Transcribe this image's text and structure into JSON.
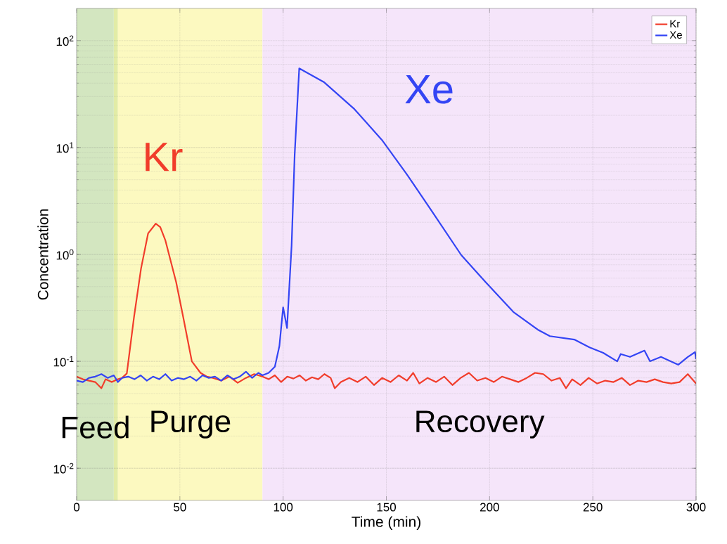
{
  "chart_data": {
    "type": "line",
    "xlabel": "Time (min)",
    "ylabel": "Concentration",
    "log": "y",
    "grid": true,
    "legend": "top right",
    "marker": "none",
    "line_style": "solid",
    "xlim": [
      0,
      300
    ],
    "xticks": [
      0,
      50,
      100,
      150,
      200,
      250,
      300
    ],
    "ylim": [
      0.005,
      200
    ],
    "yticks": [
      {
        "value": 0.01,
        "label": "10$^{-2}$"
      },
      {
        "value": 0.1,
        "label": "10$^{-1}$"
      },
      {
        "value": 1,
        "label": "10$^{0}$"
      },
      {
        "value": 10,
        "label": "10$^{1}$"
      },
      {
        "value": 100,
        "label": "10$^{2}$"
      }
    ],
    "bands": [
      {
        "axis": "x",
        "from": 0,
        "to": 18,
        "label": "Feed",
        "color": "#d3e6c0"
      },
      {
        "axis": "x",
        "from": 18,
        "to": 20,
        "label": null,
        "color": "#e2eca6"
      },
      {
        "axis": "x",
        "from": 20,
        "to": 90,
        "label": "Purge",
        "color": "#fcf9c0"
      },
      {
        "axis": "x",
        "from": 90,
        "to": 300,
        "label": "Recovery",
        "color": "#f5e5fa"
      }
    ],
    "annotations": [
      "Kr",
      "Xe"
    ],
    "series": [
      {
        "name": "Kr",
        "color": "#f23c2a",
        "x": [
          0,
          3,
          6,
          9,
          12,
          14,
          17,
          20,
          22,
          24.3,
          27.8,
          31.2,
          34.6,
          38.3,
          40.5,
          43,
          48.2,
          51.6,
          55.8,
          60,
          63,
          66,
          70,
          74,
          78,
          82,
          86,
          90,
          93,
          96,
          99,
          102,
          105,
          108,
          111,
          114,
          117,
          120,
          123,
          125,
          128,
          132,
          136,
          140,
          144,
          148,
          152,
          156,
          160,
          163,
          166,
          170,
          174,
          178,
          182,
          186,
          190,
          194,
          198,
          202,
          206,
          210,
          214,
          218,
          222,
          226,
          230,
          234,
          237,
          240,
          244,
          248,
          252,
          256,
          260,
          264,
          268,
          272,
          276,
          280,
          284,
          288,
          292,
          296,
          300
        ],
        "values": [
          0.072,
          0.068,
          0.066,
          0.064,
          0.056,
          0.068,
          0.064,
          0.068,
          0.07,
          0.077,
          0.26,
          0.74,
          1.57,
          1.94,
          1.8,
          1.35,
          0.55,
          0.26,
          0.1,
          0.078,
          0.072,
          0.07,
          0.066,
          0.072,
          0.063,
          0.07,
          0.076,
          0.072,
          0.068,
          0.074,
          0.064,
          0.072,
          0.069,
          0.074,
          0.066,
          0.071,
          0.068,
          0.076,
          0.07,
          0.056,
          0.064,
          0.07,
          0.064,
          0.072,
          0.06,
          0.07,
          0.064,
          0.074,
          0.066,
          0.078,
          0.062,
          0.07,
          0.064,
          0.072,
          0.06,
          0.07,
          0.078,
          0.066,
          0.07,
          0.064,
          0.072,
          0.068,
          0.064,
          0.07,
          0.078,
          0.076,
          0.066,
          0.07,
          0.056,
          0.068,
          0.06,
          0.07,
          0.062,
          0.066,
          0.064,
          0.07,
          0.06,
          0.066,
          0.064,
          0.068,
          0.064,
          0.062,
          0.064,
          0.076,
          0.062
        ]
      },
      {
        "name": "Xe",
        "color": "#3344f5",
        "x": [
          0,
          3,
          6,
          9,
          12,
          15,
          18,
          20,
          22,
          25,
          28,
          31,
          34,
          37,
          40,
          43,
          46,
          49,
          52,
          55,
          58,
          61,
          64,
          67,
          70,
          73,
          76,
          79,
          82,
          85,
          88,
          90,
          93,
          96,
          98.2,
          100,
          101.9,
          104.1,
          105.6,
          107.8,
          119.7,
          134.5,
          147.8,
          159.7,
          171.5,
          186.3,
          198.1,
          211.5,
          223.3,
          229.2,
          241,
          248.4,
          255,
          261.8,
          263.5,
          268,
          275,
          277.7,
          283,
          291.4,
          296,
          299.5,
          300
        ],
        "values": [
          0.066,
          0.064,
          0.07,
          0.072,
          0.076,
          0.07,
          0.074,
          0.064,
          0.07,
          0.072,
          0.068,
          0.074,
          0.066,
          0.072,
          0.068,
          0.076,
          0.066,
          0.07,
          0.068,
          0.072,
          0.066,
          0.074,
          0.07,
          0.072,
          0.066,
          0.074,
          0.068,
          0.072,
          0.08,
          0.07,
          0.078,
          0.074,
          0.078,
          0.089,
          0.139,
          0.32,
          0.205,
          1.2,
          8.6,
          55,
          41,
          22.9,
          11.8,
          5.7,
          2.63,
          0.985,
          0.55,
          0.29,
          0.198,
          0.172,
          0.16,
          0.135,
          0.12,
          0.1,
          0.117,
          0.11,
          0.126,
          0.1,
          0.11,
          0.093,
          0.11,
          0.122,
          0.105
        ]
      }
    ]
  }
}
